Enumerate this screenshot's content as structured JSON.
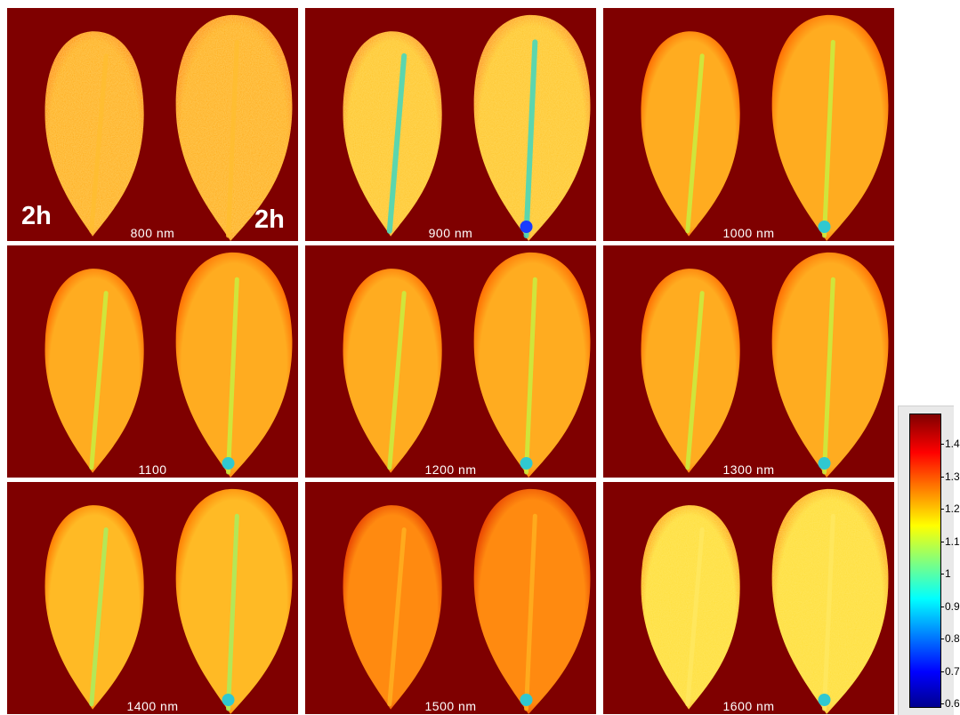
{
  "panels": [
    {
      "label": "800 nm",
      "left_tag": "2h",
      "right_tag": "2h",
      "style": "noisy"
    },
    {
      "label": "900 nm",
      "style": "noisy-cyan"
    },
    {
      "label": "1000 nm",
      "style": "smooth"
    },
    {
      "label": "1100",
      "style": "smooth"
    },
    {
      "label": "1200 nm",
      "style": "smooth"
    },
    {
      "label": "1300 nm",
      "style": "smooth"
    },
    {
      "label": "1400 nm",
      "style": "smooth-bright"
    },
    {
      "label": "1500 nm",
      "style": "smooth-dark"
    },
    {
      "label": "1600 nm",
      "style": "noisy-yellow"
    }
  ],
  "colorbar": {
    "ticks": [
      "1.4",
      "1.3",
      "1.2",
      "1.1",
      "1",
      "0.9",
      "0.8",
      "0.7",
      "0.6"
    ]
  },
  "colors": {
    "background": "#7f0000",
    "leaf_orange": "#ff9a1a",
    "leaf_yellow": "#ffd21a",
    "midrib": "#b6f04a",
    "midrib_cyan": "#3fd0c8"
  }
}
